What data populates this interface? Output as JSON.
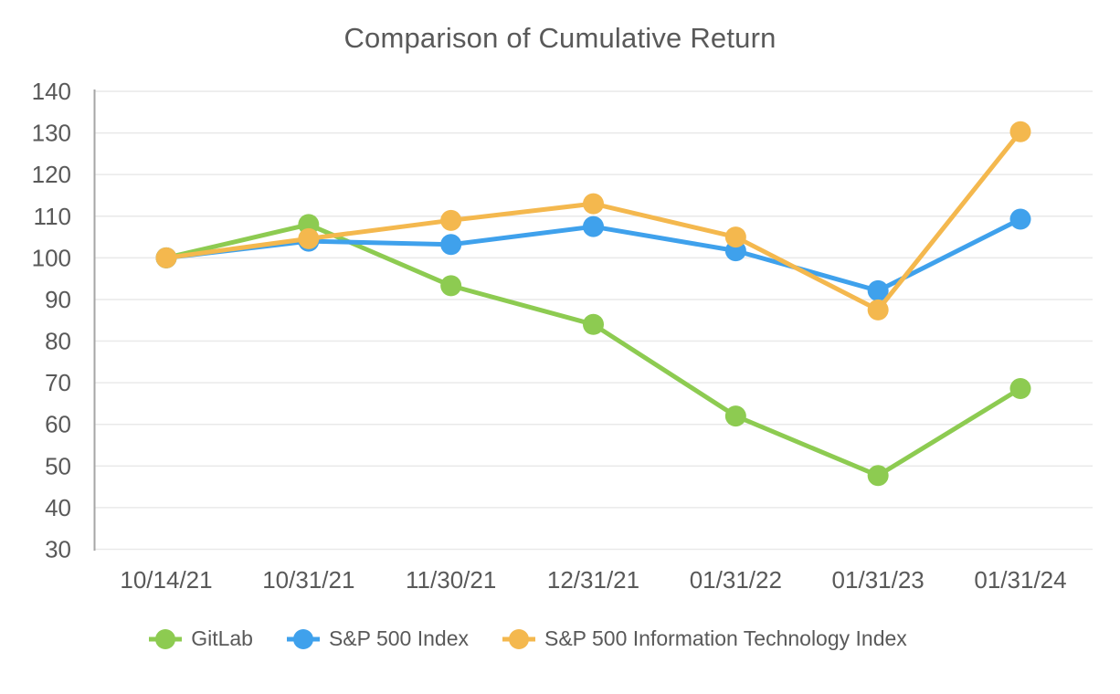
{
  "chart_data": {
    "type": "line",
    "title": "Comparison of Cumulative Return",
    "categories": [
      "10/14/21",
      "10/31/21",
      "11/30/21",
      "12/31/21",
      "01/31/22",
      "01/31/23",
      "01/31/24"
    ],
    "series": [
      {
        "name": "GitLab",
        "color": "#8DCB51",
        "values": [
          100,
          108,
          93.3,
          84,
          62,
          47.7,
          68.6
        ]
      },
      {
        "name": "S&P 500 Index",
        "color": "#3FA1EC",
        "values": [
          100,
          104,
          103.2,
          107.5,
          101.7,
          92.1,
          109.3
        ]
      },
      {
        "name": "S&P 500 Information Technology Index",
        "color": "#F4B84E",
        "values": [
          100,
          104.6,
          109,
          113,
          105,
          87.5,
          130.3
        ]
      }
    ],
    "ylim": [
      30,
      140
    ],
    "ytick_step": 10,
    "yticks": [
      140,
      130,
      120,
      110,
      100,
      90,
      80,
      70,
      60,
      50,
      40,
      30
    ],
    "grid": true,
    "legend_position": "bottom",
    "styles": {
      "text_color": "#595959",
      "grid_color": "#E9E9E9",
      "axis_color": "#A6A6A6",
      "background": "#FFFFFF"
    }
  }
}
